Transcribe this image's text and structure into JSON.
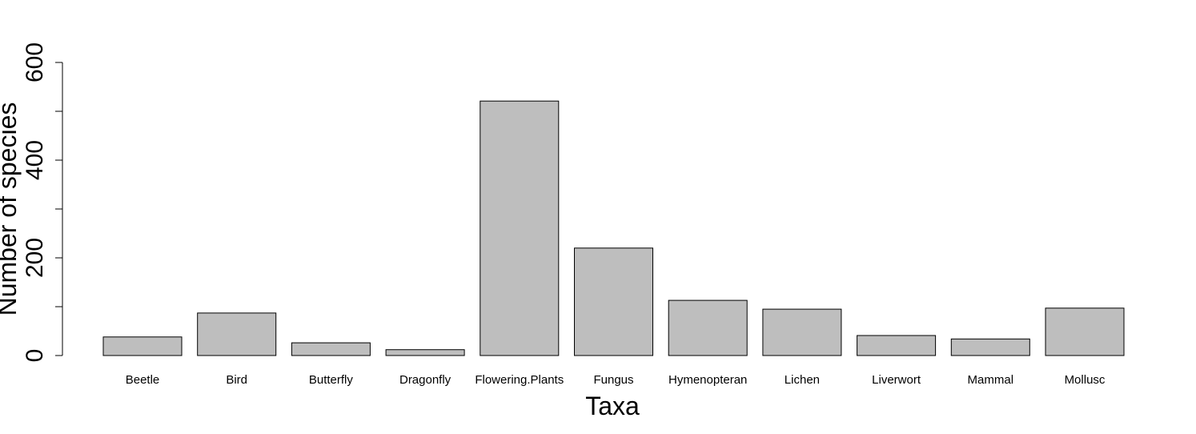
{
  "chart_data": {
    "type": "bar",
    "title": "",
    "xlabel": "Taxa",
    "ylabel": "Number of species",
    "ylim": [
      0,
      600
    ],
    "y_ticks": [
      0,
      200,
      400,
      600
    ],
    "grid": false,
    "legend": "none",
    "bar_color": "#bebebe",
    "bar_edge_color": "#000000",
    "categories": [
      "Beetle",
      "Bird",
      "Butterfly",
      "Dragonfly",
      "Flowering.Plants",
      "Fungus",
      "Hymenopteran",
      "Lichen",
      "Liverwort",
      "Mammal",
      "Mollusc"
    ],
    "values": [
      38,
      87,
      26,
      12,
      521,
      220,
      113,
      95,
      41,
      34,
      97
    ]
  }
}
